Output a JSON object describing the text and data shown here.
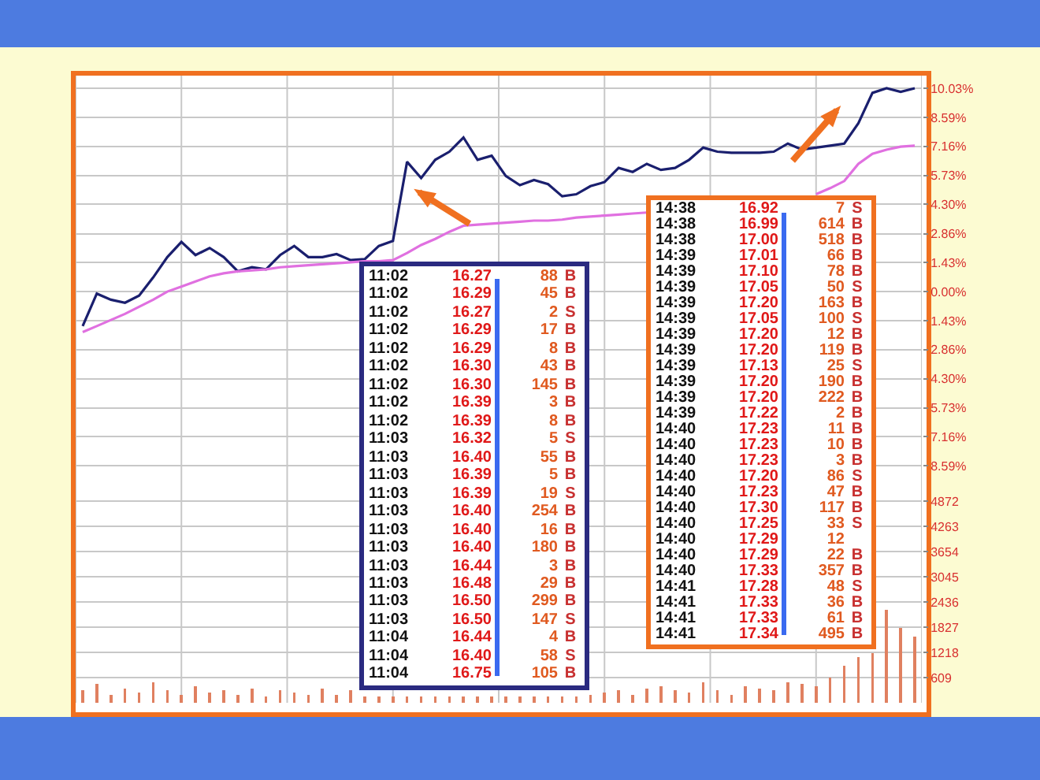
{
  "chart_data": [
    {
      "type": "line",
      "categories": [
        null,
        null,
        null,
        null,
        null,
        null,
        null,
        null,
        null,
        null,
        null,
        null,
        null,
        null,
        null,
        null,
        null,
        null,
        null,
        null,
        null,
        null,
        null,
        null,
        null,
        null,
        null,
        null,
        null,
        null,
        null,
        null,
        null,
        null,
        null,
        null,
        null,
        null,
        null,
        null,
        null,
        null,
        null,
        null,
        null,
        null,
        null,
        null,
        null,
        null,
        null,
        null,
        null,
        null,
        null,
        null,
        null,
        null,
        null,
        null
      ],
      "series": [
        {
          "color": "#1a1f6e",
          "values": [
            -1.7,
            -0.1,
            -0.4,
            -0.55,
            -0.2,
            0.7,
            1.7,
            2.45,
            1.8,
            2.15,
            1.7,
            1.0,
            1.2,
            1.1,
            1.8,
            2.25,
            1.7,
            1.7,
            1.85,
            1.55,
            1.6,
            2.25,
            2.5,
            6.4,
            5.6,
            6.5,
            6.9,
            7.6,
            6.5,
            6.7,
            5.7,
            5.25,
            5.5,
            5.3,
            4.7,
            4.8,
            5.2,
            5.4,
            6.1,
            5.9,
            6.3,
            6.0,
            6.1,
            6.5,
            7.1,
            6.9,
            6.85,
            6.85,
            6.85,
            6.9,
            7.3,
            7.0,
            7.1,
            7.2,
            7.3,
            8.3,
            9.8,
            10.03,
            9.85,
            10.03
          ]
        },
        {
          "color": "#e070e0",
          "values": [
            -2.0,
            -1.7,
            -1.4,
            -1.1,
            -0.75,
            -0.4,
            0,
            0.25,
            0.5,
            0.75,
            0.9,
            1.0,
            1.05,
            1.1,
            1.2,
            1.25,
            1.3,
            1.35,
            1.4,
            1.45,
            1.5,
            1.5,
            1.55,
            1.9,
            2.3,
            2.6,
            2.95,
            3.25,
            3.3,
            3.35,
            3.4,
            3.45,
            3.5,
            3.5,
            3.55,
            3.65,
            3.7,
            3.75,
            3.8,
            3.85,
            3.9,
            null,
            null,
            null,
            null,
            null,
            null,
            null,
            null,
            null,
            null,
            null,
            4.8,
            5.1,
            5.45,
            6.3,
            6.8,
            7.0,
            7.15,
            7.2
          ]
        }
      ],
      "ylim": [
        -10.02,
        10.65
      ],
      "yticks": [
        {
          "value": 10.03,
          "label": "10.03%"
        },
        {
          "value": 8.59,
          "label": "8.59%"
        },
        {
          "value": 7.16,
          "label": "7.16%"
        },
        {
          "value": 5.73,
          "label": "5.73%"
        },
        {
          "value": 4.3,
          "label": "4.30%"
        },
        {
          "value": 2.86,
          "label": "2.86%"
        },
        {
          "value": 1.43,
          "label": "1.43%"
        },
        {
          "value": 0,
          "label": "0.00%"
        },
        {
          "value": -1.43,
          "label": "1.43%"
        },
        {
          "value": -2.86,
          "label": "2.86%"
        },
        {
          "value": -4.3,
          "label": "4.30%"
        },
        {
          "value": -5.73,
          "label": "5.73%"
        },
        {
          "value": -7.16,
          "label": "7.16%"
        },
        {
          "value": -8.59,
          "label": "8.59%"
        }
      ],
      "grid": true,
      "tick_labels": "y",
      "annotations": [
        "11:02 16.27 88 B",
        "11:02 16.29 45 B",
        "11:02 16.27 2 S",
        "11:02 16.29 17 B",
        "11:02 16.29 8 B",
        "11:02 16.30 43 B",
        "11:02 16.30 145 B",
        "11:02 16.39 3 B",
        "11:02 16.39 8 B",
        "11:03 16.32 5 S",
        "11:03 16.40 55 B",
        "11:03 16.39 5 B",
        "11:03 16.39 19 S",
        "11:03 16.40 254 B",
        "11:03 16.40 16 B",
        "11:03 16.40 180 B",
        "11:03 16.44 3 B",
        "11:03 16.48 29 B",
        "11:03 16.50 299 B",
        "11:03 16.50 147 S",
        "11:04 16.44 4 B",
        "11:04 16.40 58 S",
        "11:04 16.75 105 B",
        "14:38 16.92 7 S",
        "14:38 16.99 614 B",
        "14:38 17.00 518 B",
        "14:39 17.01 66 B",
        "14:39 17.10 78 B",
        "14:39 17.05 50 S",
        "14:39 17.20 163 B",
        "14:39 17.05 100 S",
        "14:39 17.20 12 B",
        "14:39 17.20 119 B",
        "14:39 17.13 25 S",
        "14:39 17.20 190 B",
        "14:39 17.20 222 B",
        "14:39 17.22 2 B",
        "14:40 17.23 11 B",
        "14:40 17.23 10 B",
        "14:40 17.23 3 B",
        "14:40 17.20 86 S",
        "14:40 17.23 47 B",
        "14:40 17.30 117 B",
        "14:40 17.25 33 S",
        "14:40 17.29 12",
        "14:40 17.29 22 B",
        "14:40 17.33 357 B",
        "14:41 17.28 48 S",
        "14:41 17.33 36 B",
        "14:41 17.33 61 B",
        "14:41 17.34 495 B"
      ]
    },
    {
      "type": "bar",
      "categories": [
        null,
        null,
        null,
        null,
        null,
        null,
        null,
        null,
        null,
        null,
        null,
        null,
        null,
        null,
        null,
        null,
        null,
        null,
        null,
        null,
        null,
        null,
        null,
        null,
        null,
        null,
        null,
        null,
        null,
        null,
        null,
        null,
        null,
        null,
        null,
        null,
        null,
        null,
        null,
        null,
        null,
        null,
        null,
        null,
        null,
        null,
        null,
        null,
        null,
        null,
        null,
        null,
        null,
        null,
        null,
        null,
        null,
        null,
        null,
        null
      ],
      "color": "#e08060",
      "values": [
        300,
        450,
        200,
        350,
        250,
        500,
        300,
        200,
        400,
        250,
        300,
        200,
        350,
        150,
        300,
        250,
        200,
        350,
        200,
        300,
        150,
        150,
        150,
        150,
        150,
        150,
        150,
        150,
        150,
        150,
        150,
        150,
        150,
        150,
        150,
        150,
        200,
        250,
        300,
        200,
        350,
        400,
        300,
        250,
        500,
        300,
        200,
        400,
        350,
        300,
        500,
        450,
        400,
        600,
        900,
        1100,
        1200,
        2250,
        1800,
        1600
      ],
      "ylim": [
        0,
        5024
      ],
      "yticks": [
        609,
        1218,
        1827,
        2436,
        3045,
        3654,
        4263,
        4872
      ],
      "grid": true,
      "tick_labels": "y"
    }
  ]
}
